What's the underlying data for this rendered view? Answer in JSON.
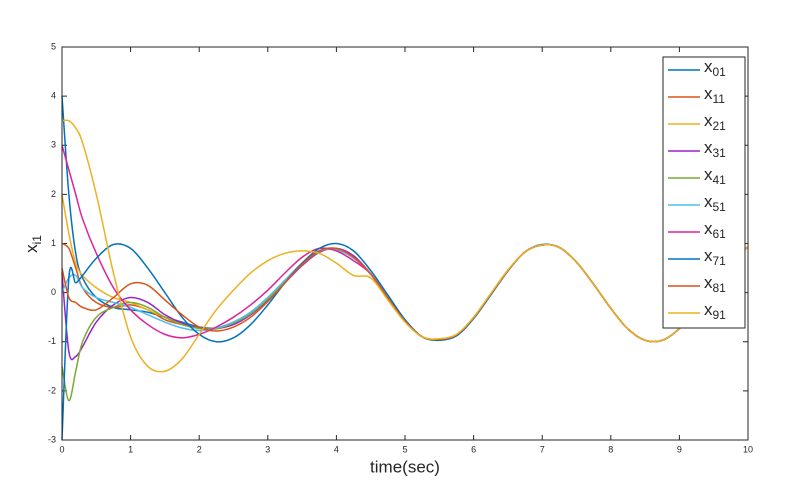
{
  "chart_data": {
    "type": "line",
    "x_label": "time(sec)",
    "y_label": "xi1",
    "x": [
      0,
      0.1,
      0.2,
      0.3,
      0.5,
      0.75,
      1,
      1.25,
      1.5,
      1.75,
      2,
      2.25,
      2.5,
      2.75,
      3,
      3.25,
      3.5,
      3.75,
      4,
      4.25,
      4.5,
      4.75,
      5,
      5.25,
      5.5,
      5.75,
      6,
      6.25,
      6.5,
      6.75,
      7,
      7.25,
      7.5,
      7.75,
      8,
      8.25,
      8.5,
      8.75,
      9,
      9.25,
      9.5,
      9.75,
      10
    ],
    "xlim": [
      0,
      10
    ],
    "xticks": [
      0,
      1,
      2,
      3,
      4,
      5,
      6,
      7,
      8,
      9,
      10
    ],
    "ylim": [
      -3,
      5
    ],
    "yticks": [
      -3,
      -2,
      -1,
      0,
      1,
      2,
      3,
      4,
      5
    ],
    "grid": false,
    "legend": "upper right",
    "series": [
      {
        "name": "x01",
        "color": "#0072BD",
        "values": [
          4,
          2.0,
          0.8,
          0.3,
          -0.1,
          -0.3,
          -0.35,
          -0.4,
          -0.5,
          -0.6,
          -0.7,
          -0.72,
          -0.6,
          -0.4,
          -0.1,
          0.25,
          0.6,
          0.85,
          0.88,
          0.72,
          0.38,
          -0.11,
          -0.58,
          -0.9,
          -0.95,
          -0.86,
          -0.51,
          -0.03,
          0.45,
          0.83,
          0.97,
          0.92,
          0.62,
          0.17,
          -0.32,
          -0.74,
          -0.97,
          -0.97,
          -0.73,
          -0.31,
          0.19,
          0.63,
          0.93
        ]
      },
      {
        "name": "x11",
        "color": "#D95319",
        "values": [
          1.0,
          0.9,
          0.5,
          0.1,
          -0.2,
          -0.3,
          -0.25,
          -0.35,
          -0.55,
          -0.65,
          -0.72,
          -0.72,
          -0.62,
          -0.42,
          -0.12,
          0.22,
          0.58,
          0.83,
          0.88,
          0.72,
          0.38,
          -0.11,
          -0.58,
          -0.9,
          -0.95,
          -0.86,
          -0.51,
          -0.03,
          0.45,
          0.83,
          0.97,
          0.92,
          0.62,
          0.17,
          -0.32,
          -0.74,
          -0.97,
          -0.97,
          -0.73,
          -0.31,
          0.19,
          0.63,
          0.93
        ]
      },
      {
        "name": "x21",
        "color": "#EDB120",
        "values": [
          2.0,
          1.2,
          0.6,
          0.35,
          0.1,
          -0.1,
          -0.2,
          -0.35,
          -0.5,
          -0.62,
          -0.72,
          -0.74,
          -0.63,
          -0.43,
          -0.13,
          0.22,
          0.58,
          0.84,
          0.88,
          0.72,
          0.38,
          -0.11,
          -0.58,
          -0.9,
          -0.95,
          -0.86,
          -0.51,
          -0.03,
          0.45,
          0.83,
          0.97,
          0.92,
          0.62,
          0.17,
          -0.32,
          -0.74,
          -0.97,
          -0.97,
          -0.73,
          -0.31,
          0.19,
          0.63,
          0.93
        ]
      },
      {
        "name": "x31",
        "color": "#9B22C7",
        "values": [
          0.4,
          -1.2,
          -1.3,
          -1.1,
          -0.6,
          -0.25,
          -0.1,
          -0.2,
          -0.45,
          -0.62,
          -0.72,
          -0.73,
          -0.65,
          -0.45,
          -0.15,
          0.2,
          0.55,
          0.82,
          0.9,
          0.75,
          0.38,
          -0.11,
          -0.58,
          -0.9,
          -0.95,
          -0.86,
          -0.51,
          -0.03,
          0.45,
          0.83,
          0.97,
          0.92,
          0.62,
          0.17,
          -0.32,
          -0.74,
          -0.97,
          -0.97,
          -0.73,
          -0.31,
          0.19,
          0.63,
          0.93
        ]
      },
      {
        "name": "x41",
        "color": "#77AC30",
        "values": [
          -1.5,
          -2.2,
          -1.6,
          -1.0,
          -0.5,
          -0.3,
          -0.2,
          -0.3,
          -0.5,
          -0.65,
          -0.73,
          -0.73,
          -0.62,
          -0.43,
          -0.13,
          0.22,
          0.57,
          0.84,
          0.88,
          0.72,
          0.38,
          -0.11,
          -0.58,
          -0.9,
          -0.95,
          -0.86,
          -0.51,
          -0.03,
          0.45,
          0.83,
          0.97,
          0.92,
          0.62,
          0.17,
          -0.32,
          -0.74,
          -0.97,
          -0.97,
          -0.73,
          -0.31,
          0.19,
          0.63,
          0.93
        ]
      },
      {
        "name": "x51",
        "color": "#4DBEEE",
        "values": [
          0.0,
          0.3,
          0.35,
          0.1,
          -0.1,
          -0.2,
          -0.3,
          -0.45,
          -0.6,
          -0.72,
          -0.77,
          -0.72,
          -0.6,
          -0.4,
          -0.1,
          0.25,
          0.6,
          0.85,
          0.87,
          0.7,
          0.38,
          -0.11,
          -0.58,
          -0.9,
          -0.95,
          -0.86,
          -0.51,
          -0.03,
          0.45,
          0.83,
          0.97,
          0.92,
          0.62,
          0.17,
          -0.32,
          -0.74,
          -0.97,
          -0.97,
          -0.73,
          -0.31,
          0.19,
          0.63,
          0.93
        ]
      },
      {
        "name": "x61",
        "color": "#E0219A",
        "values": [
          3.0,
          2.5,
          2.0,
          1.5,
          0.8,
          0.1,
          -0.35,
          -0.65,
          -0.85,
          -0.92,
          -0.85,
          -0.7,
          -0.5,
          -0.25,
          0.05,
          0.4,
          0.72,
          0.9,
          0.85,
          0.65,
          0.38,
          -0.11,
          -0.58,
          -0.9,
          -0.95,
          -0.86,
          -0.51,
          -0.03,
          0.45,
          0.83,
          0.97,
          0.92,
          0.62,
          0.17,
          -0.32,
          -0.74,
          -0.97,
          -0.97,
          -0.73,
          -0.31,
          0.19,
          0.63,
          0.93
        ]
      },
      {
        "name": "x71",
        "color": "#0072BD",
        "values": [
          -3.0,
          0.3,
          0.2,
          0.35,
          0.7,
          0.98,
          0.9,
          0.5,
          0.0,
          -0.5,
          -0.85,
          -1.0,
          -0.92,
          -0.65,
          -0.25,
          0.2,
          0.6,
          0.9,
          1.0,
          0.85,
          0.45,
          -0.05,
          -0.55,
          -0.9,
          -0.97,
          -0.88,
          -0.53,
          -0.05,
          0.44,
          0.83,
          0.98,
          0.92,
          0.62,
          0.17,
          -0.32,
          -0.74,
          -0.97,
          -0.97,
          -0.73,
          -0.31,
          0.19,
          0.63,
          0.93
        ]
      },
      {
        "name": "x81",
        "color": "#D95319",
        "values": [
          0.5,
          -0.1,
          -0.2,
          -0.3,
          -0.35,
          -0.1,
          0.18,
          0.15,
          -0.15,
          -0.45,
          -0.7,
          -0.78,
          -0.7,
          -0.5,
          -0.18,
          0.2,
          0.58,
          0.85,
          0.9,
          0.72,
          0.38,
          -0.11,
          -0.58,
          -0.9,
          -0.95,
          -0.86,
          -0.51,
          -0.03,
          0.45,
          0.83,
          0.97,
          0.92,
          0.62,
          0.17,
          -0.32,
          -0.74,
          -0.97,
          -0.97,
          -0.73,
          -0.31,
          0.19,
          0.63,
          0.93
        ]
      },
      {
        "name": "x91",
        "color": "#EDB120",
        "values": [
          3.5,
          3.5,
          3.35,
          3.05,
          2.0,
          0.4,
          -0.9,
          -1.5,
          -1.6,
          -1.35,
          -0.85,
          -0.35,
          0.05,
          0.4,
          0.65,
          0.8,
          0.85,
          0.8,
          0.6,
          0.35,
          0.3,
          -0.15,
          -0.6,
          -0.9,
          -0.94,
          -0.85,
          -0.5,
          -0.02,
          0.46,
          0.83,
          0.97,
          0.92,
          0.62,
          0.17,
          -0.32,
          -0.74,
          -0.97,
          -0.97,
          -0.73,
          -0.31,
          0.19,
          0.63,
          0.93
        ]
      }
    ]
  }
}
